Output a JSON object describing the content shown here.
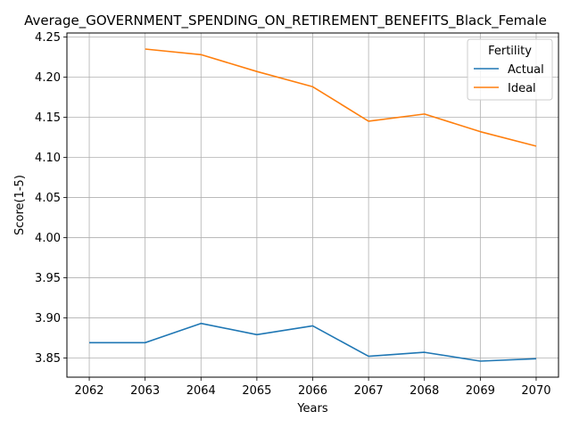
{
  "chart_data": {
    "type": "line",
    "title": "Average_GOVERNMENT_SPENDING_ON_RETIREMENT_BENEFITS_Black_Female",
    "xlabel": "Years",
    "ylabel": "Score(1-5)",
    "x": [
      2062,
      2063,
      2064,
      2065,
      2066,
      2067,
      2068,
      2069,
      2070
    ],
    "x_tick_labels": [
      "2062",
      "2063",
      "2064",
      "2065",
      "2066",
      "2067",
      "2068",
      "2069",
      "2070"
    ],
    "y_ticks": [
      3.85,
      3.9,
      3.95,
      4.0,
      4.05,
      4.1,
      4.15,
      4.2,
      4.25
    ],
    "y_tick_labels": [
      "3.85",
      "3.90",
      "3.95",
      "4.00",
      "4.05",
      "4.10",
      "4.15",
      "4.20",
      "4.25"
    ],
    "xlim": [
      2061.6,
      2070.4
    ],
    "ylim": [
      3.826,
      4.255
    ],
    "grid": true,
    "legend": {
      "title": "Fertility",
      "placement": "top-right"
    },
    "series": [
      {
        "name": "Actual",
        "color": "#1f77b4",
        "values": [
          3.869,
          3.869,
          3.893,
          3.879,
          3.89,
          3.852,
          3.857,
          3.846,
          3.849
        ]
      },
      {
        "name": "Ideal",
        "color": "#ff7f0e",
        "values": [
          null,
          4.235,
          4.228,
          4.207,
          4.188,
          4.145,
          4.154,
          4.132,
          4.114
        ]
      }
    ]
  }
}
